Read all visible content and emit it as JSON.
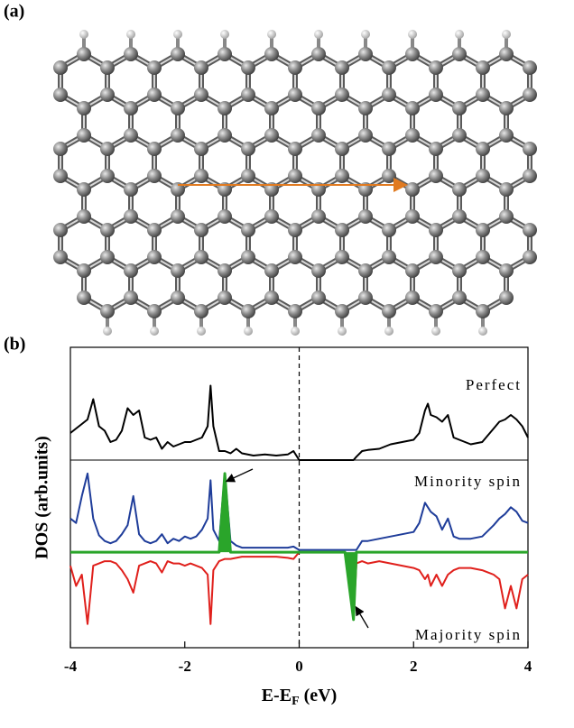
{
  "panel_a": {
    "label": "(a)"
  },
  "chart_data": {
    "type": "line",
    "label": "(b)",
    "x_label": [
      "E-E",
      "F",
      " (eV)"
    ],
    "y_label": "DOS (arb.units)",
    "xlim": [
      -4,
      4
    ],
    "xticks": [
      -4,
      -2,
      0,
      2,
      4
    ],
    "vline": 0,
    "x": [
      -4,
      -3.9,
      -3.8,
      -3.7,
      -3.6,
      -3.5,
      -3.4,
      -3.3,
      -3.2,
      -3.1,
      -3.0,
      -2.9,
      -2.8,
      -2.7,
      -2.6,
      -2.5,
      -2.4,
      -2.3,
      -2.2,
      -2.1,
      -2.0,
      -1.9,
      -1.8,
      -1.7,
      -1.6,
      -1.55,
      -1.5,
      -1.4,
      -1.3,
      -1.2,
      -1.1,
      -1.0,
      -0.8,
      -0.6,
      -0.4,
      -0.2,
      -0.1,
      0,
      0.2,
      0.4,
      0.6,
      0.8,
      0.95,
      1.0,
      1.1,
      1.2,
      1.4,
      1.6,
      1.8,
      2.0,
      2.1,
      2.2,
      2.25,
      2.3,
      2.4,
      2.5,
      2.6,
      2.7,
      2.8,
      3.0,
      3.2,
      3.4,
      3.5,
      3.6,
      3.7,
      3.8,
      3.9,
      4.0
    ],
    "panels": [
      {
        "ylim": [
          0,
          10
        ],
        "annotations": [
          "Perfect"
        ],
        "series": [
          {
            "color": "#000000",
            "values": [
              2.4,
              2.8,
              3.2,
              3.6,
              5.4,
              3.0,
              2.6,
              1.6,
              1.8,
              2.6,
              4.6,
              4.0,
              4.4,
              2.0,
              1.8,
              2.0,
              1.0,
              1.6,
              1.2,
              1.4,
              1.6,
              1.6,
              1.8,
              2.0,
              3.0,
              6.6,
              3.0,
              0.8,
              0.8,
              0.6,
              1.0,
              0.6,
              0.4,
              0.5,
              0.4,
              0.5,
              0.8,
              0,
              0,
              0,
              0,
              0,
              0,
              0.3,
              0.8,
              0.9,
              1.0,
              1.4,
              1.6,
              1.8,
              2.4,
              4.4,
              5.0,
              4.0,
              3.8,
              3.4,
              4.0,
              2.0,
              1.8,
              1.4,
              1.6,
              2.8,
              3.4,
              3.6,
              4.0,
              3.6,
              3.0,
              2.0
            ]
          }
        ]
      },
      {
        "ylim": [
          -8.5,
          8.2
        ],
        "annotations": [
          "Minority spin",
          "Majority spin"
        ],
        "series": [
          {
            "color": "#1f3d9a",
            "values": [
              3.0,
              2.6,
              5.0,
              7.0,
              3.0,
              1.5,
              1.0,
              0.8,
              1.0,
              1.6,
              2.4,
              5.0,
              1.6,
              1.0,
              0.8,
              1.0,
              1.6,
              0.8,
              1.2,
              1.0,
              1.4,
              1.2,
              1.4,
              2.0,
              3.0,
              6.4,
              2.0,
              1.0,
              7.0,
              1.0,
              0.6,
              0.4,
              0.4,
              0.4,
              0.4,
              0.4,
              0.5,
              0.2,
              0.2,
              0.2,
              0.2,
              0.2,
              0.2,
              0.2,
              1.0,
              1.0,
              1.2,
              1.4,
              1.6,
              1.8,
              2.6,
              4.4,
              4.0,
              3.6,
              3.2,
              2.0,
              3.0,
              1.4,
              1.2,
              1.2,
              1.4,
              2.4,
              3.0,
              3.4,
              4.0,
              3.6,
              2.8,
              2.6
            ]
          },
          {
            "color": "#e0201c",
            "values": [
              -1.2,
              -3.0,
              -2.0,
              -6.4,
              -1.2,
              -1.0,
              -0.8,
              -0.8,
              -1.0,
              -1.6,
              -2.4,
              -3.6,
              -1.2,
              -1.0,
              -0.8,
              -1.0,
              -1.8,
              -0.8,
              -1.0,
              -1.0,
              -1.2,
              -1.0,
              -1.2,
              -1.4,
              -2.0,
              -6.4,
              -1.6,
              -0.8,
              -0.6,
              -0.6,
              -0.5,
              -0.4,
              -0.4,
              -0.4,
              -0.4,
              -0.5,
              -0.6,
              0,
              0,
              0,
              0,
              0,
              -6.0,
              -1.0,
              -0.8,
              -1.0,
              -0.8,
              -1.0,
              -1.2,
              -1.4,
              -1.6,
              -2.4,
              -2.0,
              -3.0,
              -2.0,
              -3.0,
              -2.0,
              -1.6,
              -1.4,
              -1.4,
              -1.6,
              -2.0,
              -2.4,
              -5.0,
              -3.0,
              -5.0,
              -2.4,
              -2.0
            ]
          },
          {
            "color": "#2aa52a",
            "fill": true,
            "values": [
              0,
              0,
              0,
              0,
              0,
              0,
              0,
              0,
              0,
              0,
              0,
              0,
              0,
              0,
              0,
              0,
              0,
              0,
              0,
              0,
              0,
              0,
              0,
              0,
              0,
              0,
              0,
              0,
              7.0,
              0,
              0,
              0,
              0,
              0,
              0,
              0,
              0,
              0,
              0,
              0,
              0,
              0,
              -6.0,
              0,
              0,
              0,
              0,
              0,
              0,
              0,
              0,
              0,
              0,
              0,
              0,
              0,
              0,
              0,
              0,
              0,
              0,
              0,
              0,
              0,
              0,
              0,
              0,
              0
            ]
          }
        ]
      }
    ]
  }
}
